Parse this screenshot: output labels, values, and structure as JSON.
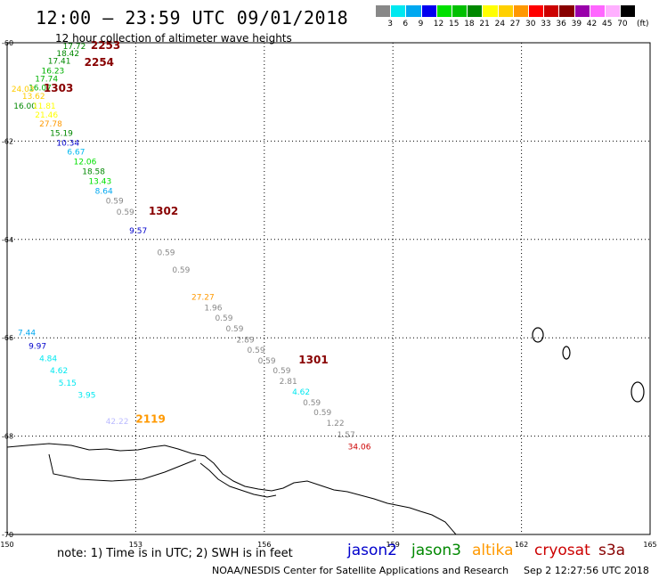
{
  "header": {
    "title": "12:00 – 23:59 UTC 09/01/2018",
    "subtitle": "12 hour collection of altimeter wave heights"
  },
  "color_scale": {
    "unit": "(ft)",
    "swatches": [
      "#888888",
      "#00e8f0",
      "#00a8f0",
      "#0000f0",
      "#00e000",
      "#00c000",
      "#008800",
      "#ffff00",
      "#ffd000",
      "#ff9800",
      "#ff0000",
      "#cc0000",
      "#880000",
      "#9900aa",
      "#ff66ff",
      "#ffb0ff",
      "#000000"
    ],
    "labels": [
      "3",
      "6",
      "9",
      "12",
      "15",
      "18",
      "21",
      "24",
      "27",
      "30",
      "33",
      "36",
      "39",
      "42",
      "45",
      "70"
    ]
  },
  "axes": {
    "lon_labels": [
      "150",
      "153",
      "156",
      "159",
      "162",
      "165"
    ],
    "lat_labels": [
      "-60",
      "-62",
      "-64",
      "-66",
      "-68",
      "-70"
    ]
  },
  "footer": {
    "note": "note: 1) Time is in UTC; 2) SWH is in feet",
    "credit": "NOAA/NESDIS Center for Satellite Applications and Research",
    "timestamp": "Sep  2 12:27:56 UTC 2018"
  },
  "satellites": [
    {
      "name": "jason2",
      "color": "#0000cc"
    },
    {
      "name": "jason3",
      "color": "#008800"
    },
    {
      "name": "altika",
      "color": "#ff9900"
    },
    {
      "name": "cryosat",
      "color": "#cc0000"
    },
    {
      "name": "s3a",
      "color": "#880000"
    }
  ],
  "map": {
    "lon_range": [
      150,
      165
    ],
    "lat_range": [
      -60,
      -70
    ]
  },
  "observations": [
    {
      "text": "17.72",
      "color": "#008800",
      "lon": 151.3,
      "lat": -60.05
    },
    {
      "text": "18.42",
      "color": "#008800",
      "lon": 151.15,
      "lat": -60.2
    },
    {
      "text": "17.41",
      "color": "#008800",
      "lon": 150.95,
      "lat": -60.35
    },
    {
      "text": "16.23",
      "color": "#00b000",
      "lon": 150.8,
      "lat": -60.55
    },
    {
      "text": "17.74",
      "color": "#00b000",
      "lon": 150.65,
      "lat": -60.72
    },
    {
      "text": "16.07",
      "color": "#00b000",
      "lon": 150.5,
      "lat": -60.9
    },
    {
      "text": "24.03",
      "color": "#ffcc00",
      "lon": 150.1,
      "lat": -60.92
    },
    {
      "text": "13.62",
      "color": "#ffcc00",
      "lon": 150.35,
      "lat": -61.07
    },
    {
      "text": "16.00",
      "color": "#008800",
      "lon": 150.15,
      "lat": -61.27
    },
    {
      "text": "11.81",
      "color": "#ffff00",
      "lon": 150.6,
      "lat": -61.27
    },
    {
      "text": "21.46",
      "color": "#ffff00",
      "lon": 150.65,
      "lat": -61.45
    },
    {
      "text": "27.78",
      "color": "#ff9900",
      "lon": 150.75,
      "lat": -61.63
    },
    {
      "text": "15.19",
      "color": "#008800",
      "lon": 151.0,
      "lat": -61.82
    },
    {
      "text": "10.34",
      "color": "#0000cc",
      "lon": 151.15,
      "lat": -62.02
    },
    {
      "text": "6.67",
      "color": "#00b8f0",
      "lon": 151.4,
      "lat": -62.2
    },
    {
      "text": "12.06",
      "color": "#00e000",
      "lon": 151.55,
      "lat": -62.4
    },
    {
      "text": "18.58",
      "color": "#008800",
      "lon": 151.75,
      "lat": -62.6
    },
    {
      "text": "13.43",
      "color": "#00e000",
      "lon": 151.9,
      "lat": -62.8
    },
    {
      "text": "8.64",
      "color": "#00a8f0",
      "lon": 152.05,
      "lat": -63.0
    },
    {
      "text": "0.59",
      "color": "#888888",
      "lon": 152.3,
      "lat": -63.2
    },
    {
      "text": "0.59",
      "color": "#888888",
      "lon": 152.55,
      "lat": -63.42
    },
    {
      "text": "9.57",
      "color": "#0000cc",
      "lon": 152.85,
      "lat": -63.8
    },
    {
      "text": "0.59",
      "color": "#888888",
      "lon": 153.5,
      "lat": -64.25
    },
    {
      "text": "0.59",
      "color": "#888888",
      "lon": 153.85,
      "lat": -64.6
    },
    {
      "text": "27.27",
      "color": "#ff9900",
      "lon": 154.3,
      "lat": -65.15
    },
    {
      "text": "1.96",
      "color": "#888888",
      "lon": 154.6,
      "lat": -65.37
    },
    {
      "text": "0.59",
      "color": "#888888",
      "lon": 154.85,
      "lat": -65.58
    },
    {
      "text": "0.59",
      "color": "#888888",
      "lon": 155.1,
      "lat": -65.8
    },
    {
      "text": "2.89",
      "color": "#888888",
      "lon": 155.35,
      "lat": -66.02
    },
    {
      "text": "0.59",
      "color": "#888888",
      "lon": 155.6,
      "lat": -66.23
    },
    {
      "text": "0.59",
      "color": "#888888",
      "lon": 155.85,
      "lat": -66.45
    },
    {
      "text": "0.59",
      "color": "#888888",
      "lon": 156.2,
      "lat": -66.65
    },
    {
      "text": "2.81",
      "color": "#888888",
      "lon": 156.35,
      "lat": -66.87
    },
    {
      "text": "4.62",
      "color": "#00e8f0",
      "lon": 156.65,
      "lat": -67.08
    },
    {
      "text": "0.59",
      "color": "#888888",
      "lon": 156.9,
      "lat": -67.3
    },
    {
      "text": "0.59",
      "color": "#888888",
      "lon": 157.15,
      "lat": -67.5
    },
    {
      "text": "1.22",
      "color": "#888888",
      "lon": 157.45,
      "lat": -67.72
    },
    {
      "text": "1.57",
      "color": "#888888",
      "lon": 157.7,
      "lat": -67.95
    },
    {
      "text": "34.06",
      "color": "#cc0000",
      "lon": 157.95,
      "lat": -68.2
    },
    {
      "text": "7.44",
      "color": "#00a8f0",
      "lon": 150.25,
      "lat": -65.88
    },
    {
      "text": "9.97",
      "color": "#0000cc",
      "lon": 150.5,
      "lat": -66.15
    },
    {
      "text": "4.84",
      "color": "#00e8f0",
      "lon": 150.75,
      "lat": -66.4
    },
    {
      "text": "4.62",
      "color": "#00e8f0",
      "lon": 151.0,
      "lat": -66.65
    },
    {
      "text": "5.15",
      "color": "#00e8f0",
      "lon": 151.2,
      "lat": -66.9
    },
    {
      "text": "3.95",
      "color": "#00e8f0",
      "lon": 151.65,
      "lat": -67.15
    },
    {
      "text": "42.22",
      "color": "#bbbbff",
      "lon": 152.3,
      "lat": -67.68
    },
    {
      "text": "2119",
      "color": "#ff9900",
      "lon": 153.0,
      "lat": -67.65,
      "bold": true
    },
    {
      "text": "2253",
      "color": "#880000",
      "lon": 151.95,
      "lat": -60.05,
      "bold": true
    },
    {
      "text": "2254",
      "color": "#880000",
      "lon": 151.8,
      "lat": -60.4,
      "bold": true
    },
    {
      "text": "1303",
      "color": "#880000",
      "lon": 150.85,
      "lat": -60.92,
      "bold": true
    },
    {
      "text": "1302",
      "color": "#880000",
      "lon": 153.3,
      "lat": -63.42,
      "bold": true
    },
    {
      "text": "1301",
      "color": "#880000",
      "lon": 156.8,
      "lat": -66.45,
      "bold": true
    }
  ]
}
